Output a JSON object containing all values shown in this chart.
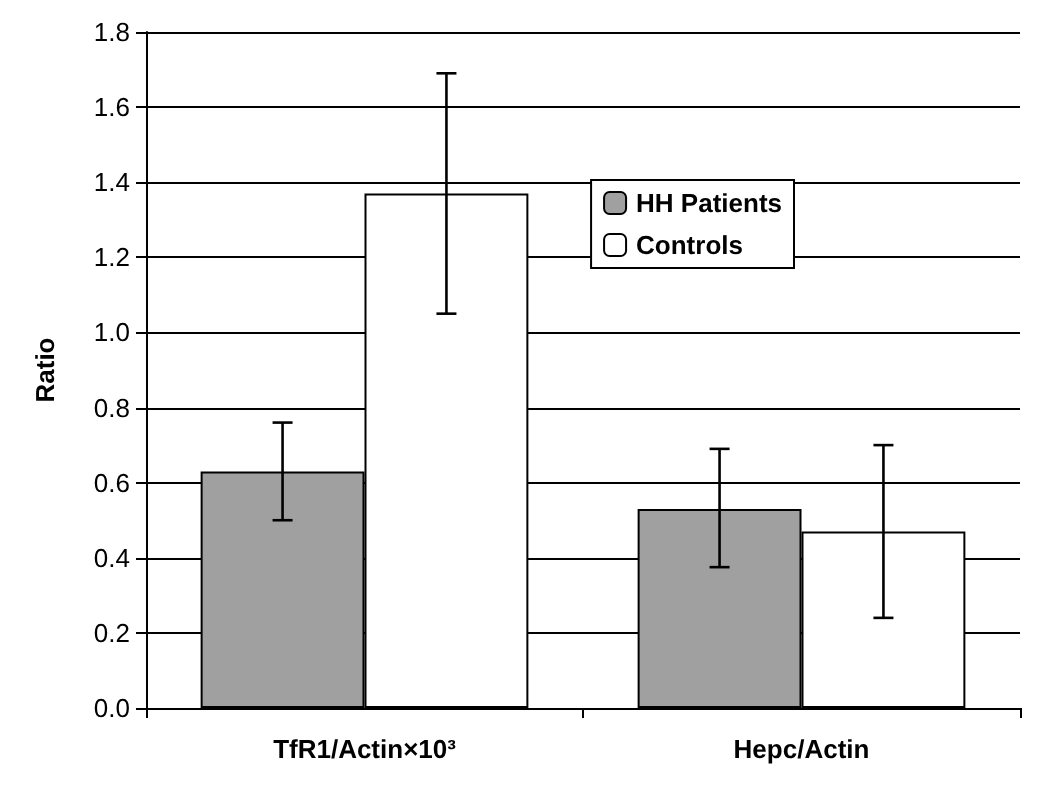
{
  "chart_data": {
    "type": "bar",
    "ylabel": "Ratio",
    "categories": [
      "TfR1/Actin×10³",
      "Hepc/Actin"
    ],
    "series": [
      {
        "name": "HH Patients",
        "color": "#a0a0a0",
        "values": [
          0.63,
          0.53
        ],
        "errors": [
          [
            0.5,
            0.76
          ],
          [
            0.375,
            0.69
          ]
        ]
      },
      {
        "name": "Controls",
        "color": "#ffffff",
        "values": [
          1.37,
          0.47
        ],
        "errors": [
          [
            1.05,
            1.69
          ],
          [
            0.24,
            0.7
          ]
        ]
      }
    ],
    "ylim": [
      0,
      1.8
    ],
    "yticks": [
      {
        "value": 0,
        "label": "0.0"
      },
      {
        "value": 0.2,
        "label": "0.2"
      },
      {
        "value": 0.4,
        "label": "0.4"
      },
      {
        "value": 0.6,
        "label": "0.6"
      },
      {
        "value": 0.8,
        "label": "0.8"
      },
      {
        "value": 1,
        "label": "1.0"
      },
      {
        "value": 1.2,
        "label": "1.2"
      },
      {
        "value": 1.4,
        "label": "1.4"
      },
      {
        "value": 1.6,
        "label": "1.6"
      },
      {
        "value": 1.8,
        "label": "1.8"
      }
    ],
    "grid": "y",
    "legend": "top right"
  }
}
